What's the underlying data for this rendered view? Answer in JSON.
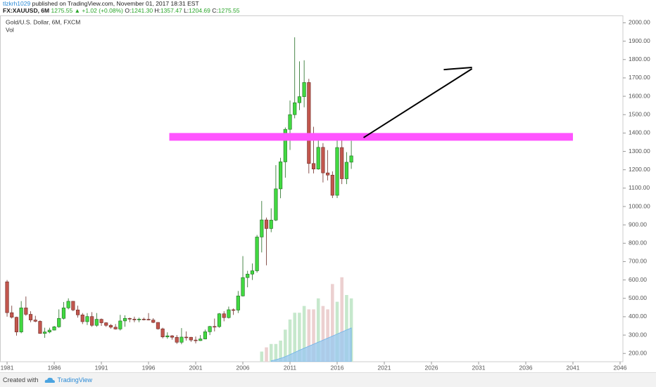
{
  "header": {
    "user": "tlzkrh1029",
    "published": "published on TradingView.com, November 01, 2017 18:31 EST",
    "symbol": "FX:XAUUSD, 6M",
    "last": "1275.55",
    "change": "▲ +1.02 (+0.08%)",
    "open_label": "O:",
    "open": "1241.30",
    "high_label": "H:",
    "high": "1357.47",
    "low_label": "L:",
    "low": "1204.69",
    "close_label": "C:",
    "close": "1275.55"
  },
  "chart_data": {
    "type": "candlestick",
    "title": "Gold/U.S. Dollar, 6M, FXCM",
    "subtitle": "Vol",
    "x": [
      1981.0,
      1981.5,
      1982.0,
      1982.5,
      1983.0,
      1983.5,
      1984.0,
      1984.5,
      1985.0,
      1985.5,
      1986.0,
      1986.5,
      1987.0,
      1987.5,
      1988.0,
      1988.5,
      1989.0,
      1989.5,
      1990.0,
      1990.5,
      1991.0,
      1991.5,
      1992.0,
      1992.5,
      1993.0,
      1993.5,
      1994.0,
      1994.5,
      1995.0,
      1995.5,
      1996.0,
      1996.5,
      1997.0,
      1997.5,
      1998.0,
      1998.5,
      1999.0,
      1999.5,
      2000.0,
      2000.5,
      2001.0,
      2001.5,
      2002.0,
      2002.5,
      2003.0,
      2003.5,
      2004.0,
      2004.5,
      2005.0,
      2005.5,
      2006.0,
      2006.5,
      2007.0,
      2007.5,
      2008.0,
      2008.5,
      2009.0,
      2009.5,
      2010.0,
      2010.5,
      2011.0,
      2011.5,
      2012.0,
      2012.5,
      2013.0,
      2013.5,
      2014.0,
      2014.5,
      2015.0,
      2015.5,
      2016.0,
      2016.5,
      2017.0,
      2017.5
    ],
    "open": [
      590,
      422,
      397,
      317,
      448,
      413,
      382,
      375,
      309,
      317,
      327,
      345,
      391,
      448,
      484,
      437,
      410,
      373,
      401,
      353,
      386,
      367,
      353,
      343,
      333,
      377,
      391,
      387,
      383,
      387,
      386,
      382,
      369,
      334,
      290,
      296,
      288,
      261,
      289,
      288,
      273,
      270,
      279,
      318,
      347,
      346,
      416,
      395,
      438,
      436,
      513,
      613,
      632,
      650,
      834,
      927,
      880,
      926,
      1096,
      1243,
      1420,
      1500,
      1565,
      1598,
      1675,
      1234,
      1204,
      1322,
      1183,
      1171,
      1061,
      1321,
      1151,
      1241.3
    ],
    "high": [
      600,
      460,
      400,
      485,
      510,
      430,
      405,
      380,
      340,
      340,
      350,
      440,
      480,
      500,
      485,
      460,
      420,
      420,
      425,
      420,
      390,
      370,
      360,
      360,
      410,
      408,
      395,
      400,
      395,
      395,
      420,
      392,
      370,
      340,
      315,
      300,
      300,
      338,
      320,
      290,
      292,
      300,
      330,
      350,
      390,
      420,
      430,
      455,
      445,
      540,
      730,
      650,
      690,
      845,
      1030,
      940,
      990,
      1225,
      1265,
      1430,
      1577,
      1921,
      1790,
      1796,
      1695,
      1434,
      1392,
      1345,
      1307,
      1191,
      1362,
      1375,
      1296,
      1357.47
    ],
    "low": [
      400,
      390,
      297,
      310,
      405,
      370,
      370,
      307,
      285,
      310,
      325,
      340,
      385,
      440,
      430,
      395,
      360,
      355,
      345,
      345,
      350,
      345,
      335,
      330,
      325,
      345,
      370,
      370,
      370,
      380,
      380,
      365,
      330,
      282,
      280,
      275,
      252,
      250,
      270,
      263,
      255,
      268,
      277,
      300,
      320,
      340,
      375,
      390,
      410,
      420,
      510,
      560,
      600,
      640,
      750,
      680,
      860,
      920,
      1045,
      1157,
      1308,
      1480,
      1525,
      1540,
      1180,
      1180,
      1200,
      1131,
      1142,
      1046,
      1046,
      1122,
      1122,
      1204.69
    ],
    "close": [
      422,
      397,
      317,
      448,
      413,
      382,
      375,
      309,
      317,
      327,
      345,
      391,
      448,
      484,
      437,
      410,
      373,
      401,
      353,
      386,
      367,
      353,
      343,
      333,
      377,
      391,
      387,
      383,
      387,
      386,
      382,
      369,
      334,
      290,
      296,
      288,
      261,
      289,
      288,
      273,
      270,
      279,
      318,
      347,
      346,
      416,
      395,
      438,
      436,
      513,
      613,
      632,
      650,
      834,
      927,
      880,
      926,
      1096,
      1243,
      1420,
      1500,
      1565,
      1598,
      1675,
      1234,
      1204,
      1322,
      1183,
      1171,
      1061,
      1321,
      1151,
      1241,
      1275.55
    ],
    "up_color": "#41d941",
    "down_color": "#c2564d",
    "up_border": "#1f6b1f",
    "down_border": "#6e2b26",
    "volume": {
      "x": [
        2008.0,
        2008.5,
        2009.0,
        2009.5,
        2010.0,
        2010.5,
        2011.0,
        2011.5,
        2012.0,
        2012.5,
        2013.0,
        2013.5,
        2014.0,
        2014.5,
        2015.0,
        2015.5,
        2016.0,
        2016.5,
        2017.0,
        2017.5
      ],
      "values": [
        60,
        85,
        105,
        105,
        125,
        190,
        250,
        290,
        290,
        330,
        310,
        310,
        375,
        330,
        310,
        460,
        355,
        500,
        395,
        375
      ],
      "ma": [
        null,
        null,
        5,
        12,
        20,
        30,
        42,
        55,
        68,
        80,
        92,
        104,
        116,
        128,
        140,
        152,
        164,
        176,
        188,
        200
      ],
      "up_color": "#c6e8cc",
      "down_color": "#ecd0d0",
      "ma_color": "#9cc9ee"
    },
    "xlim": [
      1980.25,
      2046.3
    ],
    "xticks": [
      1981,
      1986,
      1991,
      1996,
      2001,
      2006,
      2011,
      2016,
      2021,
      2026,
      2031,
      2036,
      2041,
      2046
    ],
    "ylim": [
      155,
      2040
    ],
    "yticks": [
      {
        "value": 200,
        "label": "200.00"
      },
      {
        "value": 300,
        "label": "300.00"
      },
      {
        "value": 400,
        "label": "400.00"
      },
      {
        "value": 500,
        "label": "500.00"
      },
      {
        "value": 600,
        "label": "600.00"
      },
      {
        "value": 700,
        "label": "700.00"
      },
      {
        "value": 800,
        "label": "800.00"
      },
      {
        "value": 900,
        "label": "900.00"
      },
      {
        "value": 1000,
        "label": "1000.00"
      },
      {
        "value": 1100,
        "label": "1100.00"
      },
      {
        "value": 1200,
        "label": "1200.00"
      },
      {
        "value": 1300,
        "label": "1300.00"
      },
      {
        "value": 1400,
        "label": "1400.00"
      },
      {
        "value": 1500,
        "label": "1500.00"
      },
      {
        "value": 1600,
        "label": "1600.00"
      },
      {
        "value": 1700,
        "label": "1700.00"
      },
      {
        "value": 1800,
        "label": "1800.00"
      },
      {
        "value": 1900,
        "label": "1900.00"
      },
      {
        "value": 2000,
        "label": "2000.00"
      }
    ],
    "y2lim": [
      0,
      2050
    ],
    "annotations": [
      {
        "type": "rect",
        "x": [
          1998.2,
          2041.0
        ],
        "y": [
          1358,
          1400
        ],
        "color": "#ff55ff"
      },
      {
        "type": "line",
        "x": [
          2018.8,
          2030.3
        ],
        "y": [
          1375,
          1750
        ],
        "color": "#000000"
      },
      {
        "type": "line",
        "x": [
          2027.3,
          2030.3
        ],
        "y": [
          1745,
          1757
        ],
        "color": "#000000"
      }
    ]
  },
  "footer": {
    "text": "Created with",
    "brand": "TradingView"
  }
}
